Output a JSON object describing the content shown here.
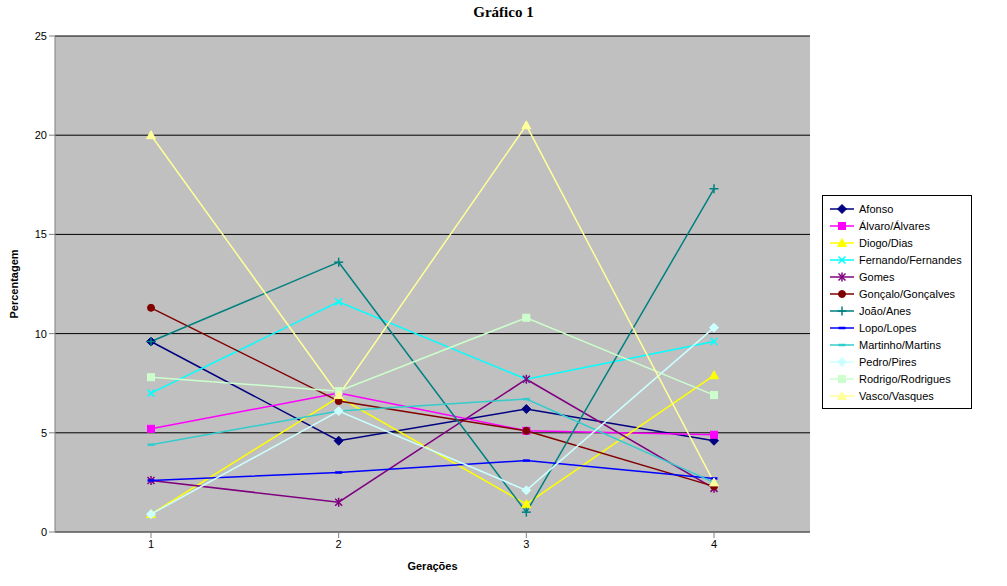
{
  "chart_data": {
    "type": "line",
    "title": "Gráfico 1",
    "x_label": "Gerações",
    "y_label": "Percentagem",
    "categories": [
      "1",
      "2",
      "3",
      "4"
    ],
    "ylim": [
      0,
      25
    ],
    "yticks": [
      0,
      5,
      10,
      15,
      20,
      25
    ],
    "grid": true,
    "legend": "right",
    "series": [
      {
        "name": "Afonso",
        "color": "#000080",
        "marker": "diamond",
        "values": [
          9.6,
          4.6,
          6.2,
          4.6
        ]
      },
      {
        "name": "Álvaro/Álvares",
        "color": "#FF00FF",
        "marker": "square",
        "values": [
          5.2,
          7.0,
          5.1,
          4.9
        ]
      },
      {
        "name": "Diogo/Dias",
        "color": "#FFFF00",
        "marker": "triangle",
        "values": [
          0.9,
          6.8,
          1.4,
          7.9
        ]
      },
      {
        "name": "Fernando/Fernandes",
        "color": "#00FFFF",
        "marker": "x",
        "values": [
          7.0,
          11.6,
          7.7,
          9.6
        ]
      },
      {
        "name": "Gomes",
        "color": "#800080",
        "marker": "star",
        "values": [
          2.6,
          1.5,
          7.7,
          2.2
        ]
      },
      {
        "name": "Gonçalo/Gonçalves",
        "color": "#800000",
        "marker": "circle",
        "values": [
          11.3,
          6.6,
          5.1,
          2.3
        ]
      },
      {
        "name": "João/Anes",
        "color": "#008080",
        "marker": "plus",
        "values": [
          9.6,
          13.6,
          1.0,
          17.3
        ]
      },
      {
        "name": "Lopo/Lopes",
        "color": "#0000FF",
        "marker": "dash",
        "values": [
          2.6,
          3.0,
          3.6,
          2.7
        ]
      },
      {
        "name": "Martinho/Martins",
        "color": "#33CCCC",
        "marker": "dash",
        "values": [
          4.4,
          6.1,
          6.7,
          2.5
        ]
      },
      {
        "name": "Pedro/Pires",
        "color": "#CCFFFF",
        "marker": "diamond",
        "values": [
          0.9,
          6.1,
          2.1,
          10.3
        ]
      },
      {
        "name": "Rodrigo/Rodrigues",
        "color": "#CCFFCC",
        "marker": "square",
        "values": [
          7.8,
          7.1,
          10.8,
          6.9
        ]
      },
      {
        "name": "Vasco/Vasques",
        "color": "#FFFF99",
        "marker": "triangle",
        "values": [
          20.0,
          6.9,
          20.5,
          2.5
        ]
      }
    ]
  }
}
